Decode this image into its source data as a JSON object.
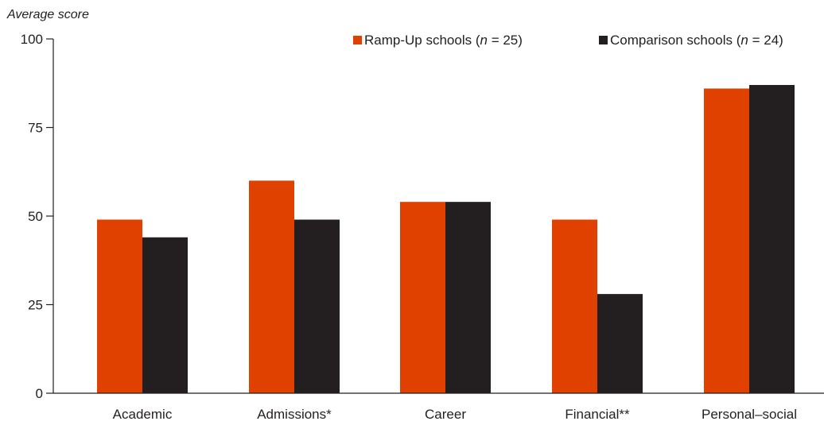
{
  "chart_data": {
    "type": "bar",
    "title": "",
    "xlabel": "",
    "ylabel": "Average score",
    "ylim": [
      0,
      100
    ],
    "yticks": [
      0,
      25,
      50,
      75,
      100
    ],
    "grid": false,
    "legend_position": "top-right",
    "categories": [
      "Academic",
      "Admissions*",
      "Career",
      "Financial**",
      "Personal–social"
    ],
    "series": [
      {
        "name": "Ramp-Up schools (n = 25)",
        "legend_prefix": "Ramp-Up schools (",
        "legend_n": "n",
        "legend_suffix": " = 25)",
        "color": "#e04000",
        "values": [
          49,
          60,
          54,
          49,
          86
        ]
      },
      {
        "name": "Comparison schools (n = 24)",
        "legend_prefix": "Comparison schools (",
        "legend_n": "n",
        "legend_suffix": " = 24)",
        "color": "#231f20",
        "values": [
          44,
          49,
          54,
          28,
          87
        ]
      }
    ],
    "axis_color": "#231f20"
  }
}
